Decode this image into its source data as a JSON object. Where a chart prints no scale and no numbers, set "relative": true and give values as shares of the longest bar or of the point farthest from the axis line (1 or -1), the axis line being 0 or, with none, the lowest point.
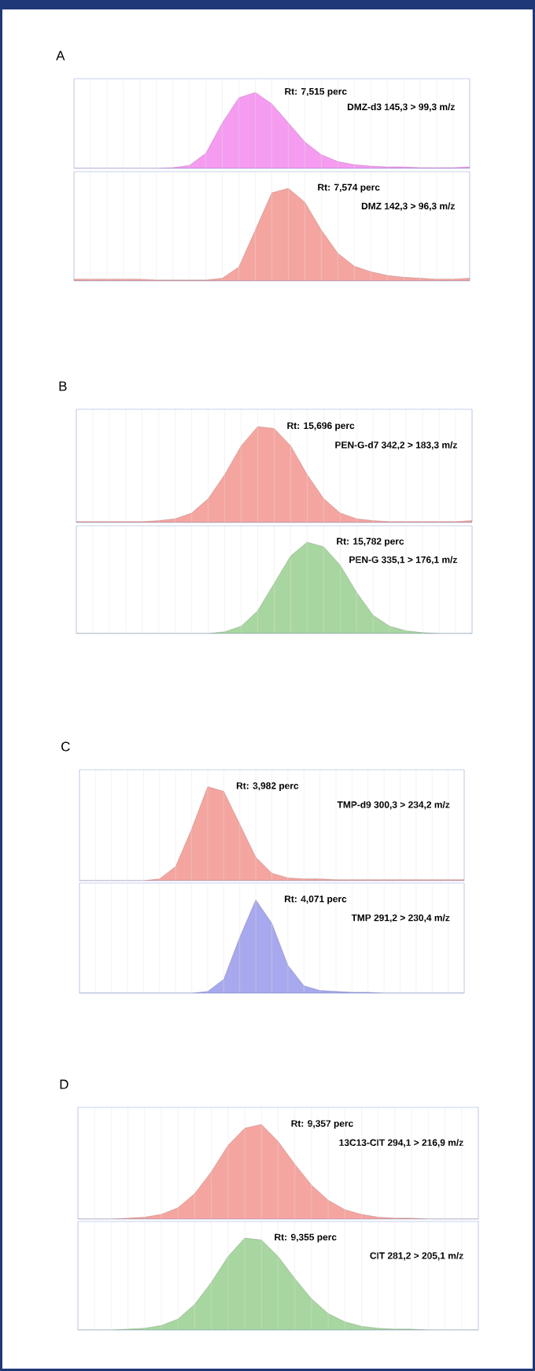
{
  "chart_data": [
    {
      "type": "area",
      "title": "A",
      "relative": true,
      "grid": "x",
      "categories": [
        null,
        null,
        null,
        null,
        null,
        null,
        null,
        null,
        null,
        null,
        null,
        null,
        null,
        null,
        null,
        null,
        null,
        null,
        null,
        null,
        null,
        null,
        null,
        null,
        null
      ],
      "annotations": [
        "Rt: 7,515 perc",
        "DMZ-d3 145,3 > 99,3 m/z"
      ],
      "series": [
        {
          "color": "#f59cf0",
          "values": [
            0,
            0,
            0,
            0,
            0,
            0,
            0.01,
            0.04,
            0.2,
            0.6,
            0.93,
            1,
            0.85,
            0.6,
            0.35,
            0.18,
            0.09,
            0.05,
            0.03,
            0.02,
            0.02,
            0.01,
            0.01,
            0.01,
            0.02
          ]
        }
      ]
    },
    {
      "type": "area",
      "relative": true,
      "grid": "x",
      "categories": [
        null,
        null,
        null,
        null,
        null,
        null,
        null,
        null,
        null,
        null,
        null,
        null,
        null,
        null,
        null,
        null,
        null,
        null,
        null,
        null,
        null,
        null,
        null,
        null,
        null
      ],
      "annotations": [
        "Rt: 7,574 perc",
        "DMZ 142,3 > 96,3 m/z"
      ],
      "series": [
        {
          "color": "#f5a5a0",
          "values": [
            0.02,
            0.02,
            0.02,
            0.02,
            0.02,
            0.01,
            0.01,
            0.01,
            0.01,
            0.03,
            0.15,
            0.55,
            0.95,
            1,
            0.85,
            0.55,
            0.3,
            0.16,
            0.1,
            0.06,
            0.04,
            0.03,
            0.02,
            0.02,
            0.03
          ]
        }
      ]
    },
    {
      "type": "area",
      "title": "B",
      "relative": true,
      "grid": "x",
      "categories": [
        null,
        null,
        null,
        null,
        null,
        null,
        null,
        null,
        null,
        null,
        null,
        null,
        null,
        null,
        null,
        null,
        null,
        null,
        null,
        null,
        null,
        null,
        null,
        null,
        null
      ],
      "annotations": [
        "Rt: 15,696 perc",
        "PEN-G-d7 342,2 > 183,3 m/z"
      ],
      "series": [
        {
          "color": "#f5a5a0",
          "values": [
            0.01,
            0.01,
            0.01,
            0.01,
            0.01,
            0.02,
            0.04,
            0.1,
            0.25,
            0.5,
            0.8,
            1,
            0.98,
            0.8,
            0.5,
            0.25,
            0.1,
            0.04,
            0.02,
            0.01,
            0.01,
            0.01,
            0.01,
            0.01,
            0.02
          ]
        }
      ]
    },
    {
      "type": "area",
      "relative": true,
      "grid": "x",
      "categories": [
        null,
        null,
        null,
        null,
        null,
        null,
        null,
        null,
        null,
        null,
        null,
        null,
        null,
        null,
        null,
        null,
        null,
        null,
        null,
        null,
        null,
        null,
        null,
        null,
        null
      ],
      "annotations": [
        "Rt: 15,782 perc",
        "PEN-G 335,1 > 176,1 m/z"
      ],
      "series": [
        {
          "color": "#a8d6a0",
          "values": [
            0,
            0,
            0,
            0,
            0,
            0,
            0,
            0,
            0,
            0.02,
            0.08,
            0.25,
            0.55,
            0.85,
            1,
            0.95,
            0.75,
            0.45,
            0.2,
            0.08,
            0.03,
            0.01,
            0,
            0,
            0
          ]
        }
      ]
    },
    {
      "type": "area",
      "title": "C",
      "relative": true,
      "grid": "x",
      "categories": [
        null,
        null,
        null,
        null,
        null,
        null,
        null,
        null,
        null,
        null,
        null,
        null,
        null,
        null,
        null,
        null,
        null,
        null,
        null,
        null,
        null,
        null,
        null,
        null,
        null
      ],
      "annotations": [
        "Rt: 3,982 perc",
        "TMP-d9 300,3 > 234,2 m/z"
      ],
      "series": [
        {
          "color": "#f5a5a0",
          "values": [
            0,
            0,
            0,
            0,
            0,
            0.02,
            0.15,
            0.55,
            1,
            0.95,
            0.6,
            0.25,
            0.08,
            0.03,
            0.02,
            0.02,
            0.01,
            0.01,
            0.01,
            0.01,
            0.01,
            0.01,
            0.01,
            0.01,
            0.01
          ]
        }
      ]
    },
    {
      "type": "area",
      "relative": true,
      "grid": "x",
      "categories": [
        null,
        null,
        null,
        null,
        null,
        null,
        null,
        null,
        null,
        null,
        null,
        null,
        null,
        null,
        null,
        null,
        null,
        null,
        null,
        null,
        null,
        null,
        null,
        null,
        null
      ],
      "annotations": [
        "Rt: 4,071 perc",
        "TMP 291,2 > 230,4 m/z"
      ],
      "series": [
        {
          "color": "#a8a8ee",
          "values": [
            0,
            0,
            0,
            0,
            0,
            0,
            0,
            0,
            0.02,
            0.15,
            0.6,
            1,
            0.75,
            0.3,
            0.08,
            0.03,
            0.02,
            0.01,
            0.01,
            0,
            0,
            0,
            0,
            0,
            0
          ]
        }
      ]
    },
    {
      "type": "area",
      "title": "D",
      "relative": true,
      "grid": "x",
      "categories": [
        null,
        null,
        null,
        null,
        null,
        null,
        null,
        null,
        null,
        null,
        null,
        null,
        null,
        null,
        null,
        null,
        null,
        null,
        null,
        null,
        null,
        null,
        null,
        null,
        null
      ],
      "annotations": [
        "Rt: 9,357 perc",
        "13C13-CIT 294,1 > 216,9 m/z"
      ],
      "series": [
        {
          "color": "#f5a5a0",
          "values": [
            0,
            0,
            0,
            0.01,
            0.02,
            0.05,
            0.12,
            0.27,
            0.5,
            0.78,
            0.96,
            1,
            0.82,
            0.58,
            0.36,
            0.2,
            0.1,
            0.05,
            0.02,
            0.01,
            0.01,
            0,
            0,
            0,
            0
          ]
        }
      ]
    },
    {
      "type": "area",
      "relative": true,
      "grid": "x",
      "categories": [
        null,
        null,
        null,
        null,
        null,
        null,
        null,
        null,
        null,
        null,
        null,
        null,
        null,
        null,
        null,
        null,
        null,
        null,
        null,
        null,
        null,
        null,
        null,
        null,
        null
      ],
      "annotations": [
        "Rt: 9,355 perc",
        "CIT 281,2 > 205,1 m/z"
      ],
      "series": [
        {
          "color": "#a8d6a0",
          "values": [
            0,
            0,
            0,
            0.01,
            0.02,
            0.05,
            0.12,
            0.28,
            0.52,
            0.8,
            1,
            0.98,
            0.8,
            0.56,
            0.34,
            0.18,
            0.09,
            0.04,
            0.02,
            0.01,
            0.01,
            0,
            0,
            0,
            0
          ]
        }
      ]
    }
  ]
}
